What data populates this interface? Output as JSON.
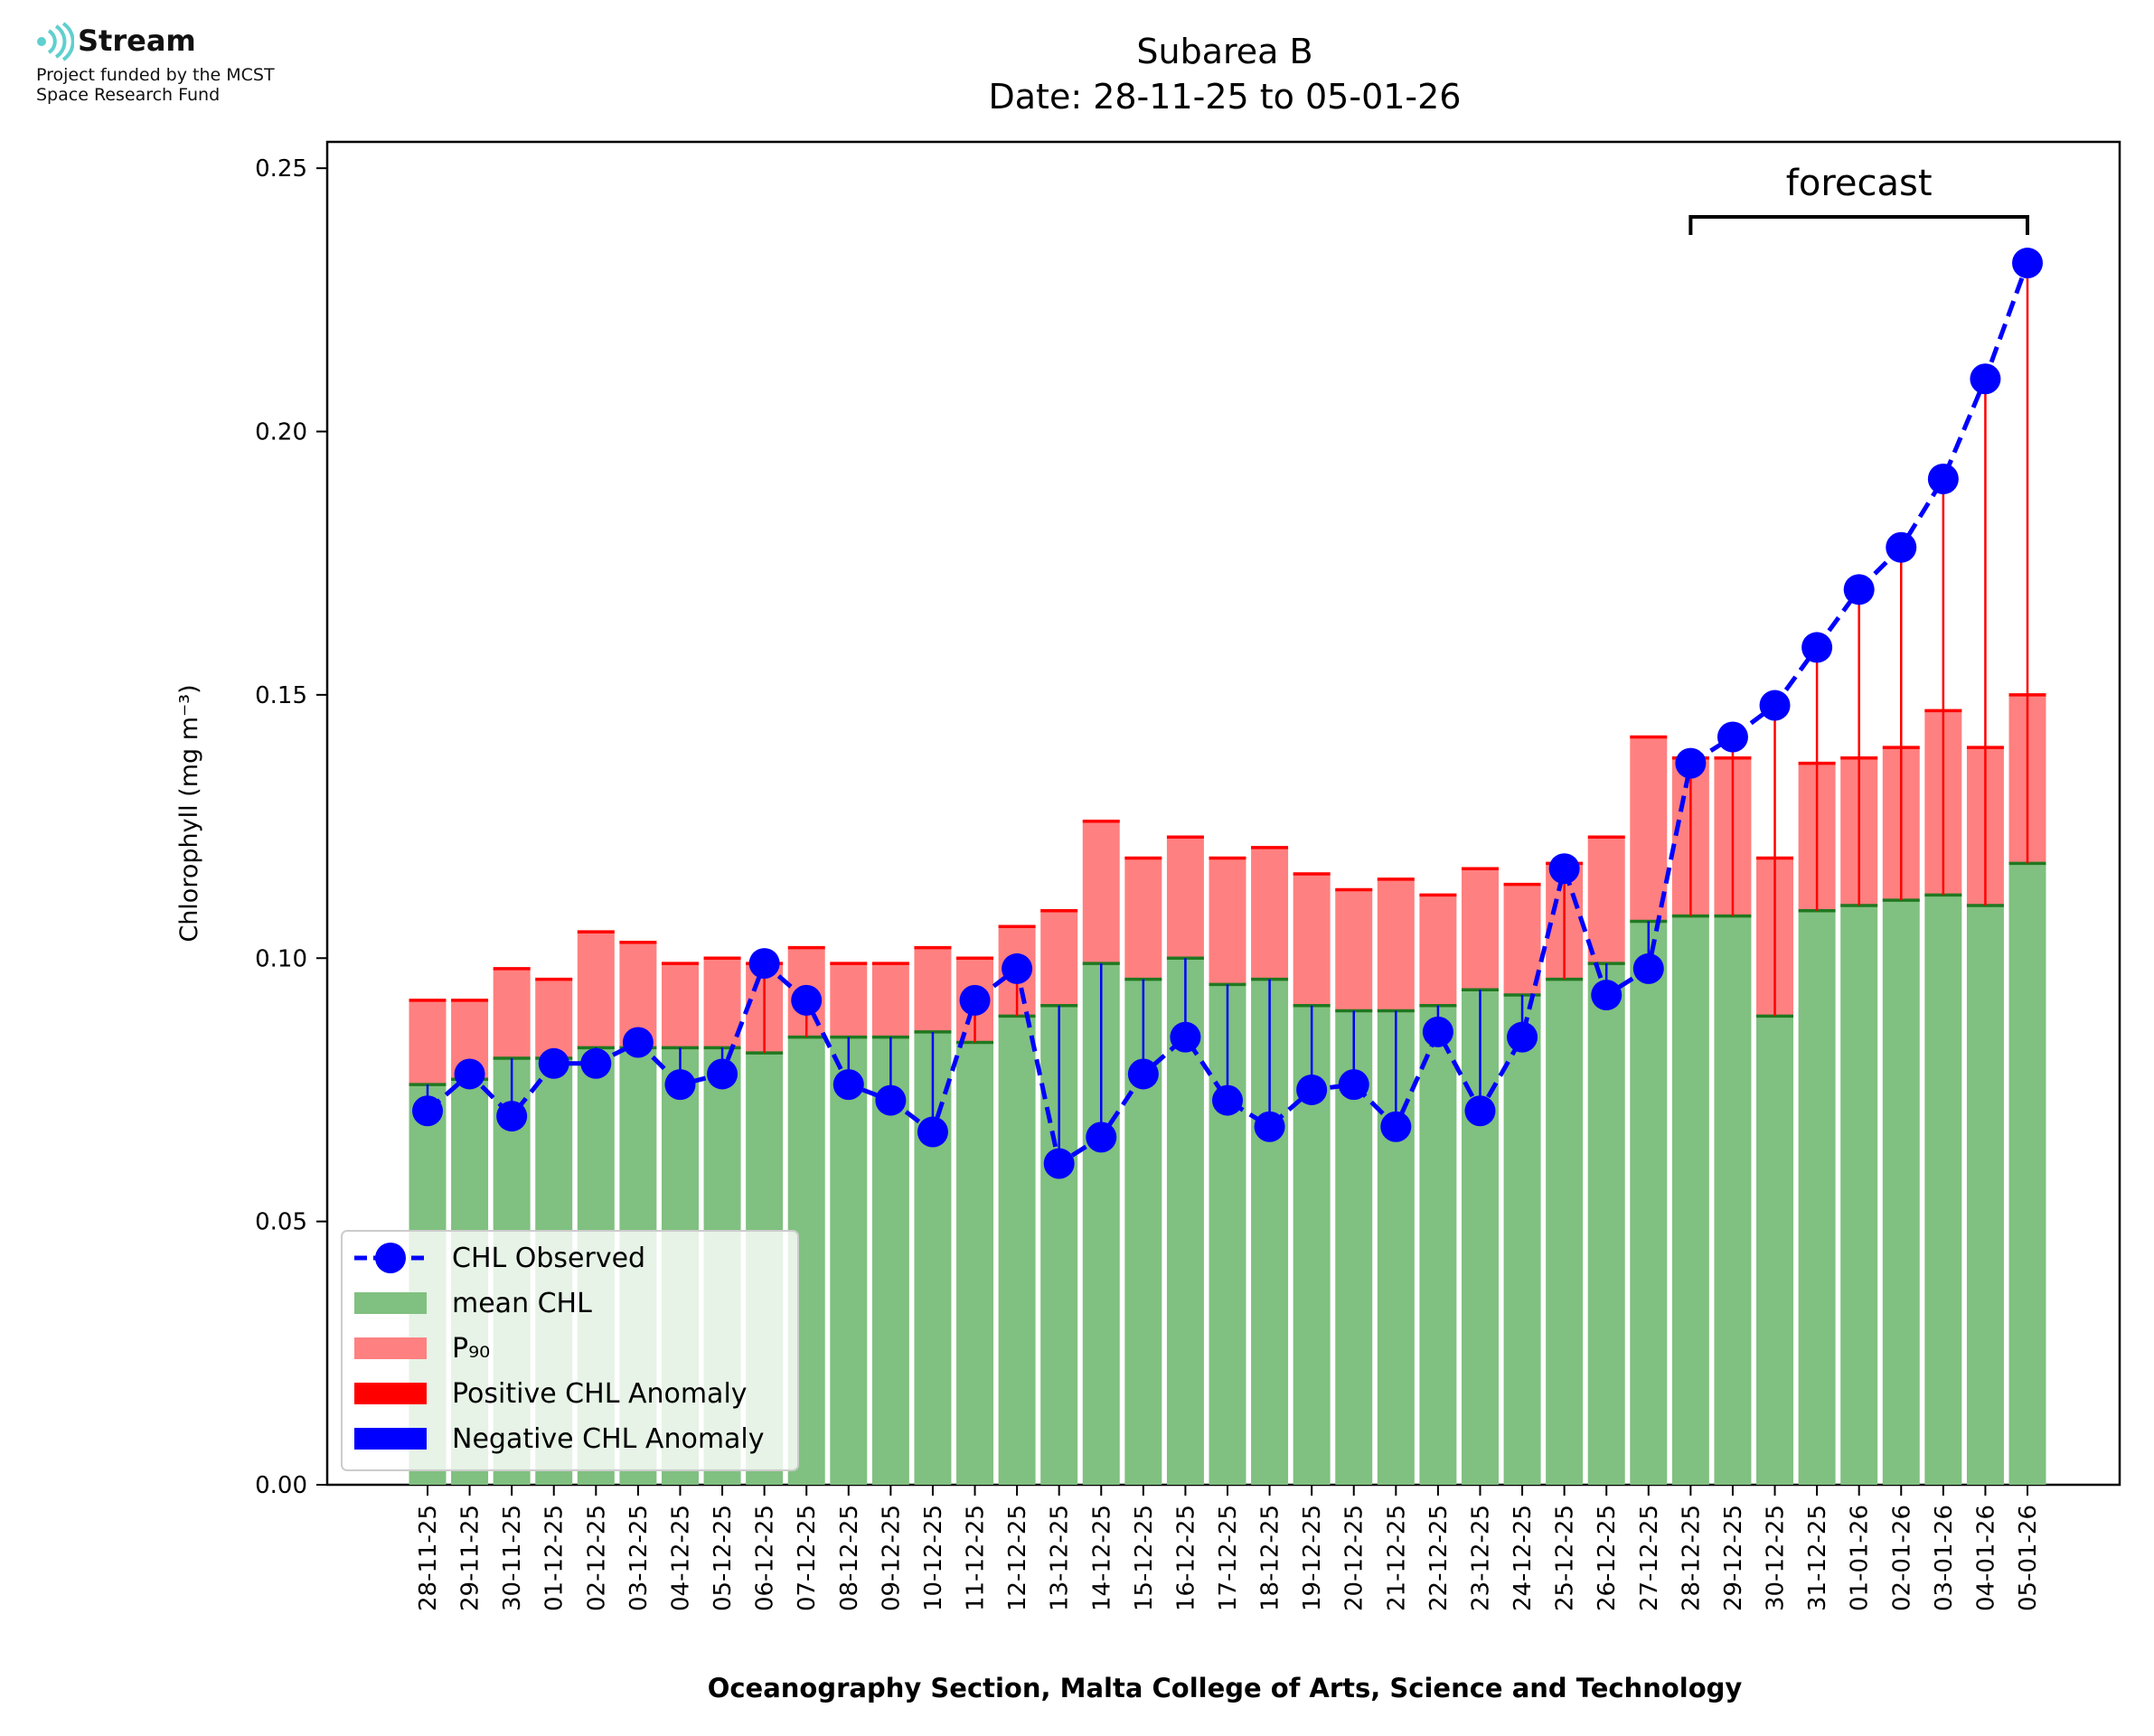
{
  "logo": {
    "brand": "Stream",
    "funding_line1": "Project funded by the MCST",
    "funding_line2": "Space Research Fund"
  },
  "colors": {
    "mean_bar": "#80c080",
    "p90_bar": "#ff8080",
    "positive_anomaly": "#ff0000",
    "negative_anomaly": "#0000ff",
    "observed_line": "#0000ff",
    "mean_cap": "#207820",
    "logo_accent": "#5fcfcf"
  },
  "chart_data": {
    "type": "bar",
    "title": "Subarea B",
    "subtitle": "Date: 28-11-25 to 05-01-26",
    "xlabel": "Oceanography Section, Malta College of Arts, Science and Technology",
    "ylabel": "Chlorophyll (mg m⁻³)",
    "ylim": [
      0,
      0.255
    ],
    "yticks": [
      0.0,
      0.05,
      0.1,
      0.15,
      0.2,
      0.25
    ],
    "ytick_labels": [
      "0.00",
      "0.05",
      "0.10",
      "0.15",
      "0.20",
      "0.25"
    ],
    "grid": false,
    "legend_position": "lower-left",
    "categories": [
      "28-11-25",
      "29-11-25",
      "30-11-25",
      "01-12-25",
      "02-12-25",
      "03-12-25",
      "04-12-25",
      "05-12-25",
      "06-12-25",
      "07-12-25",
      "08-12-25",
      "09-12-25",
      "10-12-25",
      "11-12-25",
      "12-12-25",
      "13-12-25",
      "14-12-25",
      "15-12-25",
      "16-12-25",
      "17-12-25",
      "18-12-25",
      "19-12-25",
      "20-12-25",
      "21-12-25",
      "22-12-25",
      "23-12-25",
      "24-12-25",
      "25-12-25",
      "26-12-25",
      "27-12-25",
      "28-12-25",
      "29-12-25",
      "30-12-25",
      "31-12-25",
      "01-01-26",
      "02-01-26",
      "03-01-26",
      "04-01-26",
      "05-01-26"
    ],
    "series": [
      {
        "name": "mean CHL",
        "values": [
          0.076,
          0.077,
          0.081,
          0.081,
          0.083,
          0.083,
          0.083,
          0.083,
          0.082,
          0.085,
          0.085,
          0.085,
          0.086,
          0.084,
          0.089,
          0.091,
          0.099,
          0.096,
          0.1,
          0.095,
          0.096,
          0.091,
          0.09,
          0.09,
          0.091,
          0.094,
          0.093,
          0.096,
          0.099,
          0.107,
          0.108,
          0.108,
          0.089,
          0.109,
          0.11,
          0.111,
          0.112,
          0.11,
          0.118
        ]
      },
      {
        "name": "P₉₀",
        "values": [
          0.092,
          0.092,
          0.098,
          0.096,
          0.105,
          0.103,
          0.099,
          0.1,
          0.099,
          0.102,
          0.099,
          0.099,
          0.102,
          0.1,
          0.106,
          0.109,
          0.126,
          0.119,
          0.123,
          0.119,
          0.121,
          0.116,
          0.113,
          0.115,
          0.112,
          0.117,
          0.114,
          0.118,
          0.123,
          0.142,
          0.138,
          0.138,
          0.119,
          0.137,
          0.138,
          0.14,
          0.147,
          0.14,
          0.15
        ]
      },
      {
        "name": "CHL Observed",
        "values": [
          0.071,
          0.078,
          0.07,
          0.08,
          0.08,
          0.084,
          0.076,
          0.078,
          0.099,
          0.092,
          0.076,
          0.073,
          0.067,
          0.092,
          0.098,
          0.061,
          0.066,
          0.078,
          0.085,
          0.073,
          0.068,
          0.075,
          0.076,
          0.068,
          0.086,
          0.071,
          0.085,
          0.117,
          0.093,
          0.098,
          0.137,
          0.142,
          0.148,
          0.159,
          0.17,
          0.178,
          0.191,
          0.21,
          0.232
        ]
      }
    ],
    "legend": [
      "CHL Observed",
      "mean CHL",
      "P₉₀",
      "Positive CHL Anomaly",
      "Negative CHL Anomaly"
    ],
    "annotation": {
      "text": "forecast",
      "from": "28-12-25",
      "to": "05-01-26"
    }
  }
}
